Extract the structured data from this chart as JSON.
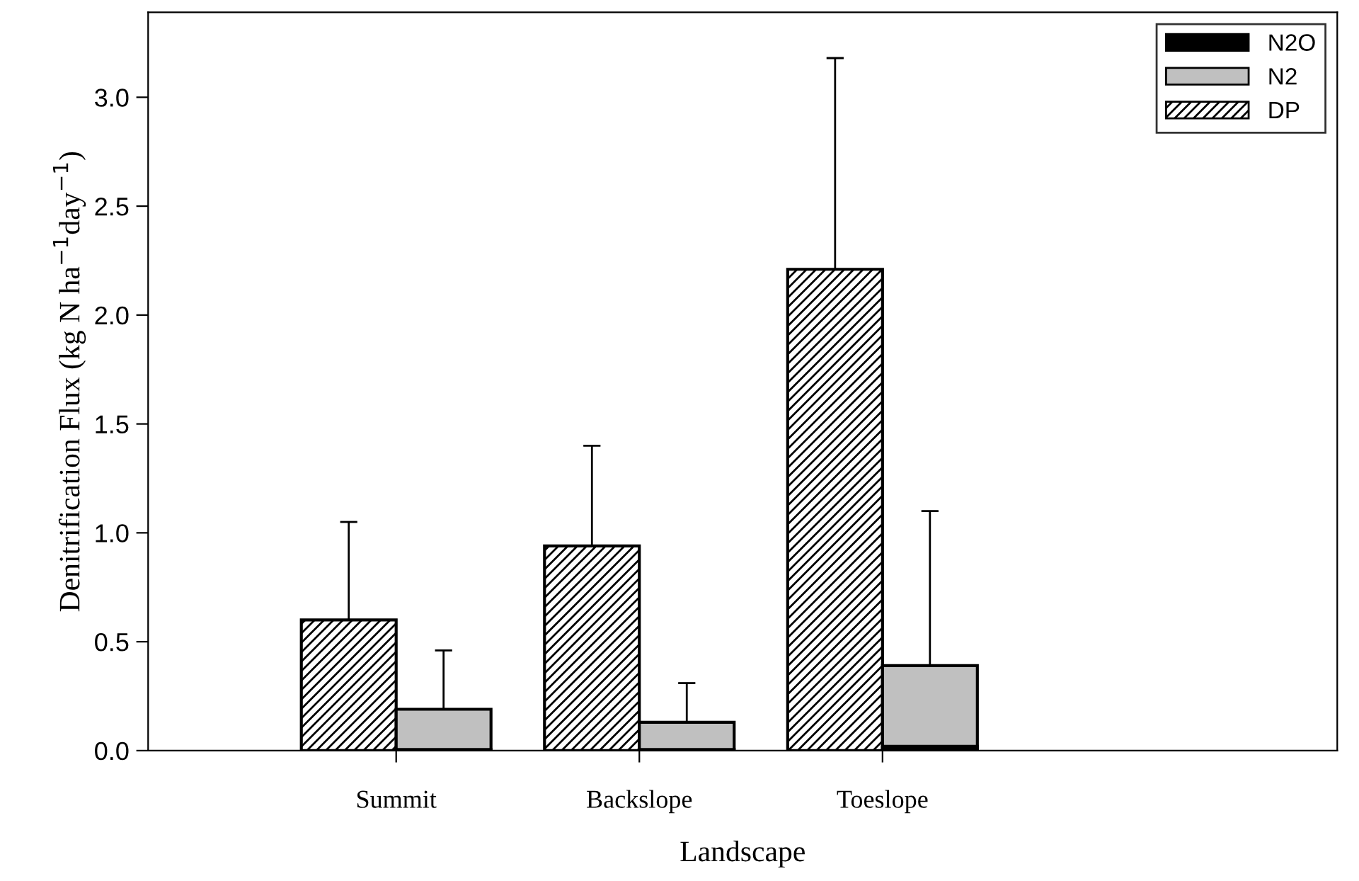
{
  "chart_data": {
    "type": "bar",
    "xlabel": "Landscape",
    "ylabel": "Denitrification Flux (kg N ha$^{−1}$day$^{−1}$)",
    "categories": [
      "Summit",
      "Backslope",
      "Toeslope"
    ],
    "series": [
      {
        "name": "N2O",
        "color": "#000000",
        "values": [
          0.005,
          0.005,
          0.02
        ]
      },
      {
        "name": "N2",
        "color": "#c0c0c0",
        "values": [
          0.19,
          0.13,
          0.39
        ],
        "errors": [
          [
            0.19,
            0.46
          ],
          [
            0.13,
            0.31
          ],
          [
            0.39,
            1.1
          ]
        ]
      },
      {
        "name": "DP",
        "color": "#000000",
        "values": [
          0.6,
          0.94,
          2.21
        ],
        "errors": [
          [
            0.6,
            1.05
          ],
          [
            0.94,
            1.4
          ],
          [
            2.21,
            3.18
          ]
        ]
      }
    ],
    "ylim": [
      0,
      3.39
    ],
    "yticks": [
      {
        "value": 0,
        "label": "0.0"
      },
      {
        "value": 0.5,
        "label": "0.5"
      },
      {
        "value": 1,
        "label": "1.0"
      },
      {
        "value": 1.5,
        "label": "1.5"
      },
      {
        "value": 2,
        "label": "2.0"
      },
      {
        "value": 2.5,
        "label": "2.5"
      },
      {
        "value": 3,
        "label": "3.0"
      }
    ],
    "legend": "top right"
  }
}
